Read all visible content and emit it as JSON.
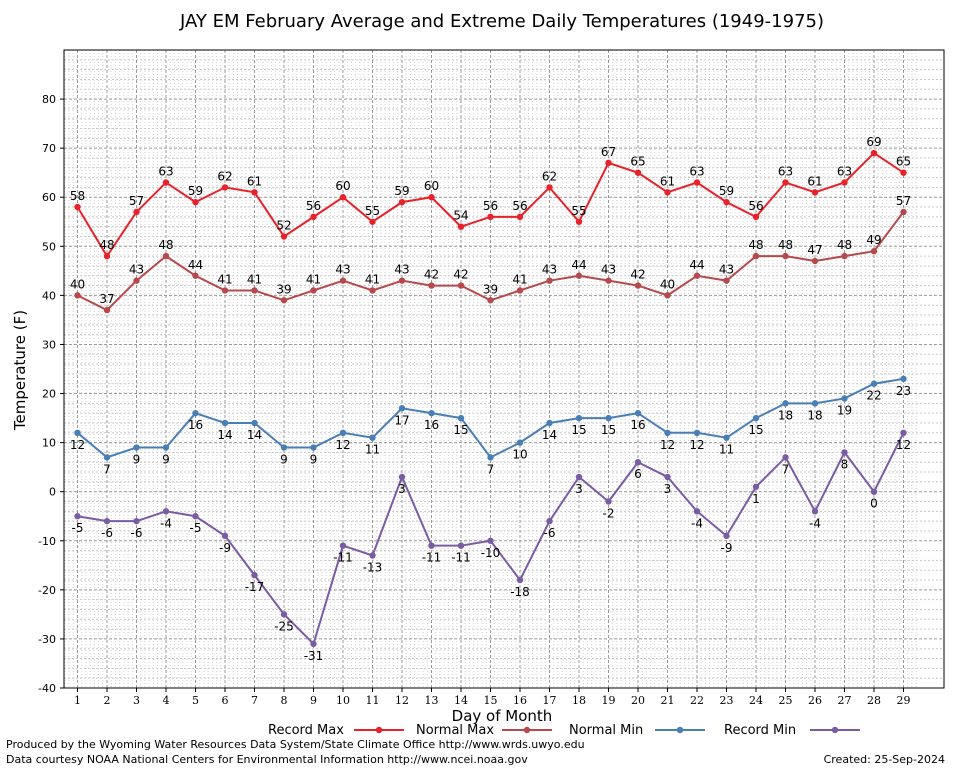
{
  "chart_data": {
    "type": "line",
    "title": "JAY EM February Average and Extreme Daily Temperatures (1949-1975)",
    "xlabel": "Day of Month",
    "ylabel": "Temperature (F)",
    "ylim": [
      -40,
      90
    ],
    "yticks": [
      -40,
      -30,
      -20,
      -10,
      0,
      10,
      20,
      30,
      40,
      50,
      60,
      70,
      80
    ],
    "grid": true,
    "legend_placement": "bottom",
    "x": [
      1,
      2,
      3,
      4,
      5,
      6,
      7,
      8,
      9,
      10,
      11,
      12,
      13,
      14,
      15,
      16,
      17,
      18,
      19,
      20,
      21,
      22,
      23,
      24,
      25,
      26,
      27,
      28,
      29
    ],
    "series": [
      {
        "name": "Record Max",
        "color": "#e8222a",
        "values": [
          58,
          48,
          57,
          63,
          59,
          62,
          61,
          52,
          56,
          60,
          55,
          59,
          60,
          54,
          56,
          56,
          62,
          55,
          67,
          65,
          61,
          63,
          59,
          56,
          63,
          61,
          63,
          69,
          65
        ]
      },
      {
        "name": "Normal Max",
        "color": "#b5494c",
        "values": [
          40,
          37,
          43,
          48,
          44,
          41,
          41,
          39,
          41,
          43,
          41,
          43,
          42,
          42,
          39,
          41,
          43,
          44,
          43,
          42,
          40,
          44,
          43,
          48,
          48,
          47,
          48,
          49,
          57
        ]
      },
      {
        "name": "Normal Min",
        "color": "#4a7fb5",
        "values": [
          12,
          7,
          9,
          9,
          16,
          14,
          14,
          9,
          9,
          12,
          11,
          17,
          16,
          15,
          7,
          10,
          14,
          15,
          15,
          16,
          12,
          12,
          11,
          15,
          18,
          18,
          19,
          22,
          23
        ]
      },
      {
        "name": "Record Min",
        "color": "#7a5ca3",
        "values": [
          -5,
          -6,
          -6,
          -4,
          -5,
          -9,
          -17,
          -25,
          -31,
          -11,
          -13,
          3,
          -11,
          -11,
          -10,
          -18,
          -6,
          3,
          -2,
          6,
          3,
          -4,
          -9,
          1,
          7,
          -4,
          8,
          0,
          12
        ]
      }
    ]
  },
  "footer": {
    "line1": "Produced by the Wyoming Water Resources Data System/State Climate Office http://www.wrds.uwyo.edu",
    "line2": "Data courtesy NOAA National Centers for Environmental Information http://www.ncei.noaa.gov",
    "created": "Created:  25-Sep-2024"
  }
}
